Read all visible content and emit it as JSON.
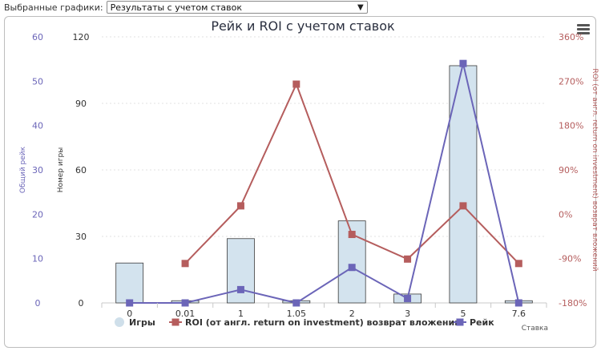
{
  "selector": {
    "label": "Выбранные графики:",
    "value": "Результаты с учетом ставок"
  },
  "chart_data": {
    "type": "bar+line",
    "title": "Рейк и ROI с учетом ставок",
    "xlabel": "Ставка",
    "categories": [
      "0",
      "0.01",
      "1",
      "1.05",
      "2",
      "3",
      "5",
      "7.6"
    ],
    "axes": {
      "left_outer": {
        "label": "Общий рейк",
        "ticks": [
          "0",
          "10",
          "20",
          "30",
          "40",
          "50",
          "60"
        ],
        "range": [
          0,
          60
        ],
        "color": "#6b65b8"
      },
      "left_inner": {
        "label": "Номер игры",
        "ticks": [
          "0",
          "30",
          "60",
          "90",
          "120"
        ],
        "range": [
          0,
          120
        ],
        "color": "#333333"
      },
      "right": {
        "label": "ROI (от англ. return on investment) возврат вложений",
        "ticks": [
          "-180%",
          "-90%",
          "0%",
          "90%",
          "180%",
          "270%",
          "360%"
        ],
        "range": [
          -180,
          360
        ],
        "color": "#b55d5d"
      }
    },
    "series": [
      {
        "name": "Игры",
        "kind": "bar",
        "axis": "left_inner",
        "color": "#d3e3ee",
        "values": [
          18,
          1,
          29,
          1,
          37,
          4,
          107,
          1
        ]
      },
      {
        "name": "ROI (от англ. return on investment) возврат вложений",
        "kind": "line",
        "axis": "right",
        "color": "#b55d5d",
        "values": [
          null,
          -100,
          17,
          264,
          -41,
          -91,
          17,
          -100
        ]
      },
      {
        "name": "Рейк",
        "kind": "line",
        "axis": "left_outer",
        "color": "#6b65b8",
        "values": [
          0,
          0,
          3,
          0,
          8,
          1,
          54,
          0
        ]
      }
    ],
    "grid": true,
    "legend": "bottom"
  }
}
